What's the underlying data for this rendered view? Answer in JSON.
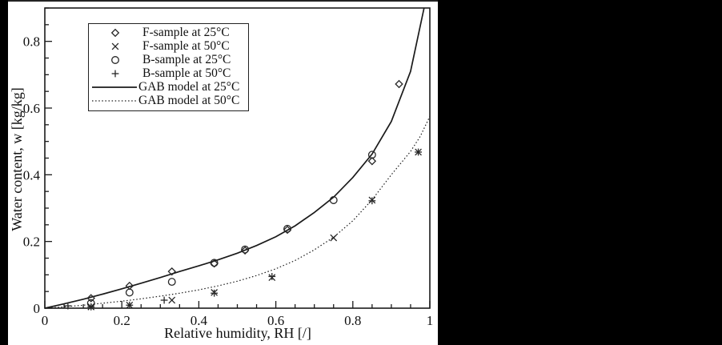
{
  "colors": {
    "background": "#000000",
    "panel": "#ffffff",
    "ink": "#1a1a1a"
  },
  "chart_data": {
    "type": "scatter",
    "title": "",
    "xlabel": "Relative humidity, RH [/]",
    "ylabel": "Water content, w [kg/kg]",
    "xlim": [
      0,
      1
    ],
    "ylim": [
      0,
      0.9
    ],
    "x_major_ticks": [
      0,
      0.2,
      0.4,
      0.6,
      0.8,
      1
    ],
    "x_tick_labels": [
      "0",
      "0.2",
      "0.4",
      "0.6",
      "0.8",
      "1"
    ],
    "y_major_ticks": [
      0,
      0.2,
      0.4,
      0.6,
      0.8
    ],
    "y_tick_labels": [
      "0",
      "0.2",
      "0.4",
      "0.6",
      "0.8"
    ],
    "minor_tick_step": 0.05,
    "grid": false,
    "legend_position": "top-left",
    "series": [
      {
        "name": "F-sample at 25°C",
        "kind": "scatter",
        "marker": "diamond",
        "points": [
          [
            0.12,
            0.03
          ],
          [
            0.22,
            0.067
          ],
          [
            0.33,
            0.11
          ],
          [
            0.44,
            0.134
          ],
          [
            0.52,
            0.173
          ],
          [
            0.63,
            0.235
          ],
          [
            0.85,
            0.441
          ],
          [
            0.92,
            0.672
          ]
        ]
      },
      {
        "name": "F-sample at 50°C",
        "kind": "scatter",
        "marker": "x",
        "points": [
          [
            0.12,
            0.004
          ],
          [
            0.22,
            0.009
          ],
          [
            0.33,
            0.024
          ],
          [
            0.44,
            0.047
          ],
          [
            0.59,
            0.092
          ],
          [
            0.75,
            0.211
          ],
          [
            0.85,
            0.324
          ],
          [
            0.97,
            0.468
          ]
        ]
      },
      {
        "name": "B-sample at 25°C",
        "kind": "scatter",
        "marker": "circle",
        "points": [
          [
            0.12,
            0.015
          ],
          [
            0.22,
            0.047
          ],
          [
            0.33,
            0.079
          ],
          [
            0.44,
            0.136
          ],
          [
            0.52,
            0.176
          ],
          [
            0.63,
            0.238
          ],
          [
            0.75,
            0.324
          ],
          [
            0.85,
            0.46
          ]
        ]
      },
      {
        "name": "B-sample at 50°C",
        "kind": "scatter",
        "marker": "plus",
        "points": [
          [
            0.06,
            0.007
          ],
          [
            0.12,
            0.004
          ],
          [
            0.22,
            0.009
          ],
          [
            0.31,
            0.024
          ],
          [
            0.44,
            0.045
          ],
          [
            0.59,
            0.095
          ],
          [
            0.85,
            0.322
          ],
          [
            0.97,
            0.468
          ]
        ]
      },
      {
        "name": "GAB model at 25°C",
        "kind": "line",
        "line": "solid",
        "points": [
          [
            0,
            0
          ],
          [
            0.05,
            0.013
          ],
          [
            0.1,
            0.027
          ],
          [
            0.15,
            0.042
          ],
          [
            0.2,
            0.058
          ],
          [
            0.25,
            0.075
          ],
          [
            0.3,
            0.092
          ],
          [
            0.35,
            0.11
          ],
          [
            0.4,
            0.127
          ],
          [
            0.45,
            0.145
          ],
          [
            0.5,
            0.165
          ],
          [
            0.55,
            0.188
          ],
          [
            0.6,
            0.214
          ],
          [
            0.65,
            0.247
          ],
          [
            0.7,
            0.287
          ],
          [
            0.75,
            0.333
          ],
          [
            0.8,
            0.392
          ],
          [
            0.85,
            0.462
          ],
          [
            0.9,
            0.56
          ],
          [
            0.95,
            0.71
          ],
          [
            0.985,
            0.9
          ]
        ]
      },
      {
        "name": "GAB model at 50°C",
        "kind": "line",
        "line": "dotted",
        "points": [
          [
            0,
            0
          ],
          [
            0.05,
            0.004
          ],
          [
            0.1,
            0.009
          ],
          [
            0.15,
            0.015
          ],
          [
            0.2,
            0.021
          ],
          [
            0.25,
            0.028
          ],
          [
            0.3,
            0.036
          ],
          [
            0.35,
            0.045
          ],
          [
            0.4,
            0.055
          ],
          [
            0.45,
            0.067
          ],
          [
            0.5,
            0.081
          ],
          [
            0.55,
            0.098
          ],
          [
            0.6,
            0.118
          ],
          [
            0.65,
            0.143
          ],
          [
            0.7,
            0.175
          ],
          [
            0.75,
            0.213
          ],
          [
            0.8,
            0.262
          ],
          [
            0.85,
            0.325
          ],
          [
            0.9,
            0.4
          ],
          [
            0.95,
            0.47
          ],
          [
            0.975,
            0.515
          ],
          [
            1,
            0.575
          ]
        ]
      }
    ]
  }
}
